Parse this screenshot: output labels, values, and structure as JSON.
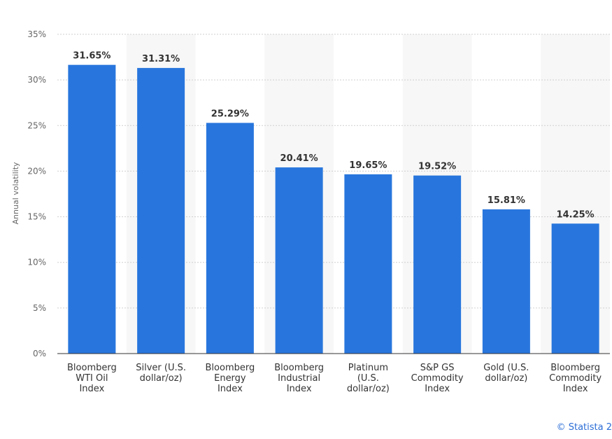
{
  "chart_data": {
    "type": "bar",
    "title": "",
    "xlabel": "",
    "ylabel": "Annual volatility",
    "categories": [
      [
        "Bloomberg",
        "WTI Oil",
        "Index"
      ],
      [
        "Silver (U.S.",
        "dollar/oz)"
      ],
      [
        "Bloomberg",
        "Energy",
        "Index"
      ],
      [
        "Bloomberg",
        "Industrial",
        "Index"
      ],
      [
        "Platinum",
        "(U.S.",
        "dollar/oz)"
      ],
      [
        "S&P GS",
        "Commodity",
        "Index"
      ],
      [
        "Gold (U.S.",
        "dollar/oz)"
      ],
      [
        "Bloomberg",
        "Commodity",
        "Index"
      ]
    ],
    "values": [
      31.65,
      31.31,
      25.29,
      20.41,
      19.65,
      19.52,
      15.81,
      14.25
    ],
    "value_labels": [
      "31.65%",
      "31.31%",
      "25.29%",
      "20.41%",
      "19.65%",
      "19.52%",
      "15.81%",
      "14.25%"
    ],
    "ylim": [
      0,
      35
    ],
    "yticks": [
      0,
      5,
      10,
      15,
      20,
      25,
      30,
      35
    ],
    "ytick_labels": [
      "0%",
      "5%",
      "10%",
      "15%",
      "20%",
      "25%",
      "30%",
      "35%"
    ],
    "grid": true,
    "bar_color": "#2876dd",
    "band_color": "#f7f7f7"
  },
  "credit": "© Statista 2"
}
